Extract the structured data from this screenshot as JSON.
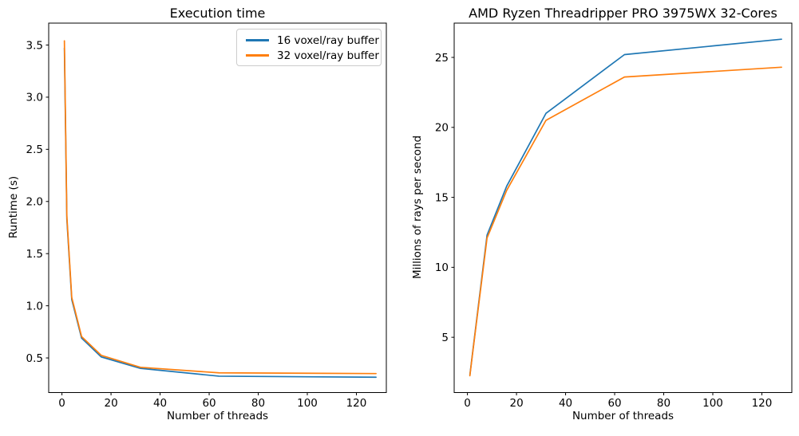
{
  "figure": {
    "background": "#ffffff"
  },
  "colors": {
    "series_blue": "#1f77b4",
    "series_orange": "#ff7f0e",
    "spine": "#000000",
    "legend_border": "#cccccc"
  },
  "chart_data": [
    {
      "type": "line",
      "title": "Execution time",
      "xlabel": "Number of threads",
      "ylabel": "Runtime (s)",
      "x": [
        1,
        2,
        4,
        8,
        16,
        32,
        64,
        128
      ],
      "series": [
        {
          "name": "16 voxel/ray buffer",
          "color": "#1f77b4",
          "values": [
            3.47,
            1.83,
            1.06,
            0.69,
            0.51,
            0.4,
            0.325,
            0.315
          ]
        },
        {
          "name": "32 voxel/ray buffer",
          "color": "#ff7f0e",
          "values": [
            3.54,
            1.86,
            1.08,
            0.705,
            0.525,
            0.41,
            0.357,
            0.35
          ]
        }
      ],
      "xlim": [
        -5.4,
        132.2
      ],
      "ylim": [
        0.168,
        3.71
      ],
      "xticks": [
        0,
        20,
        40,
        60,
        80,
        100,
        120
      ],
      "xticklabels": [
        "0",
        "20",
        "40",
        "60",
        "80",
        "100",
        "120"
      ],
      "yticks": [
        0.5,
        1.0,
        1.5,
        2.0,
        2.5,
        3.0,
        3.5
      ],
      "yticklabels": [
        "0.5",
        "1.0",
        "1.5",
        "2.0",
        "2.5",
        "3.0",
        "3.5"
      ],
      "grid": false,
      "legend": {
        "visible": true,
        "position": "upper right"
      }
    },
    {
      "type": "line",
      "title": "AMD Ryzen Threadripper PRO 3975WX 32-Cores",
      "xlabel": "Number of threads",
      "ylabel": "Millions of rays per second",
      "x": [
        1,
        2,
        4,
        8,
        16,
        32,
        64,
        128
      ],
      "series": [
        {
          "name": "16 voxel/ray buffer",
          "color": "#1f77b4",
          "values": [
            2.3,
            3.75,
            6.6,
            12.3,
            15.8,
            21.0,
            25.2,
            26.3
          ]
        },
        {
          "name": "32 voxel/ray buffer",
          "color": "#ff7f0e",
          "values": [
            2.25,
            3.7,
            6.5,
            12.1,
            15.5,
            20.5,
            23.6,
            24.3
          ]
        }
      ],
      "xlim": [
        -5.4,
        132.2
      ],
      "ylim": [
        1.05,
        27.45
      ],
      "xticks": [
        0,
        20,
        40,
        60,
        80,
        100,
        120
      ],
      "xticklabels": [
        "0",
        "20",
        "40",
        "60",
        "80",
        "100",
        "120"
      ],
      "yticks": [
        5,
        10,
        15,
        20,
        25
      ],
      "yticklabels": [
        "5",
        "10",
        "15",
        "20",
        "25"
      ],
      "grid": false,
      "legend": {
        "visible": false,
        "position": ""
      }
    }
  ]
}
